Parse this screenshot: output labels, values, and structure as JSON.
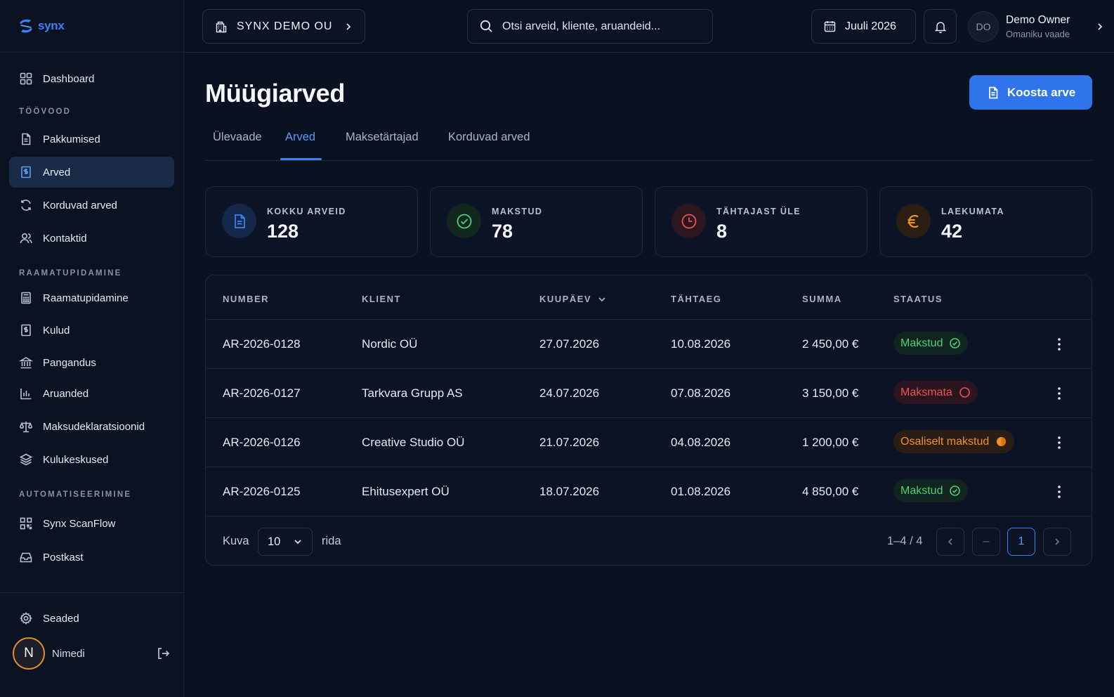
{
  "brand": {
    "name": "synx"
  },
  "sidebar": {
    "dashboard": "Dashboard",
    "sections": {
      "workflows": "TÖÖVOOD",
      "accounting": "RAAMATUPIDAMINE",
      "automation": "AUTOMATISEERIMINE"
    },
    "items": {
      "offers": "Pakkumised",
      "invoices": "Arved",
      "recurring": "Korduvad arved",
      "contacts": "Kontaktid",
      "accounting": "Raamatupidamine",
      "expenses": "Kulud",
      "banking": "Pangandus",
      "reports": "Aruanded",
      "tax": "Maksudeklaratsioonid",
      "costcenters": "Kulukeskused",
      "scanflow": "Synx ScanFlow",
      "mailbox": "Postkast",
      "settings": "Seaded"
    },
    "user": {
      "initial": "N",
      "name": "Nimedi"
    }
  },
  "header": {
    "company": "SYNX DEMO OU",
    "search_placeholder": "Otsi arveid, kliente, aruandeid...",
    "period": "Juuli 2026",
    "user": {
      "initials": "DO",
      "name": "Demo Owner",
      "role": "Omaniku vaade"
    }
  },
  "page": {
    "title": "Müügiarved",
    "create_button": "Koosta arve",
    "tabs": [
      "Ülevaade",
      "Arved",
      "Maksetärtajad",
      "Korduvad arved"
    ],
    "active_tab": "Arved"
  },
  "stats": [
    {
      "label": "KOKKU ARVEID",
      "value": "128",
      "icon": "document-icon",
      "color": "#3b82f6"
    },
    {
      "label": "MAKSTUD",
      "value": "78",
      "icon": "check-circle-icon",
      "color": "#4ed07a"
    },
    {
      "label": "TÄHTAJAST ÜLE",
      "value": "8",
      "icon": "clock-icon",
      "color": "#f0524f"
    },
    {
      "label": "LAEKUMATA",
      "value": "42",
      "icon": "euro-icon",
      "color": "#f0922c"
    }
  ],
  "table": {
    "columns": [
      "NUMBER",
      "KLIENT",
      "KUUPÄEV",
      "TÄHTAEG",
      "SUMMA",
      "STAATUS"
    ],
    "rows": [
      {
        "number": "AR-2026-0128",
        "client": "Nordic OÜ",
        "date": "27.07.2026",
        "due": "10.08.2026",
        "amount": "2 450,00 €",
        "status": "Makstud"
      },
      {
        "number": "AR-2026-0127",
        "client": "Tarkvara Grupp AS",
        "date": "24.07.2026",
        "due": "07.08.2026",
        "amount": "3 150,00 €",
        "status": "Maksmata"
      },
      {
        "number": "AR-2026-0126",
        "client": "Creative Studio OÜ",
        "date": "21.07.2026",
        "due": "04.08.2026",
        "amount": "1 200,00 €",
        "status": "Osaliselt makstud"
      },
      {
        "number": "AR-2026-0125",
        "client": "Ehitusexpert OÜ",
        "date": "18.07.2026",
        "due": "01.08.2026",
        "amount": "4 850,00 €",
        "status": "Makstud"
      }
    ],
    "footer": {
      "show_label": "Kuva",
      "rows_value": "10",
      "rows_label": "rida",
      "range": "1–4 / 4",
      "ellipsis": "–",
      "current_page": "1"
    }
  }
}
